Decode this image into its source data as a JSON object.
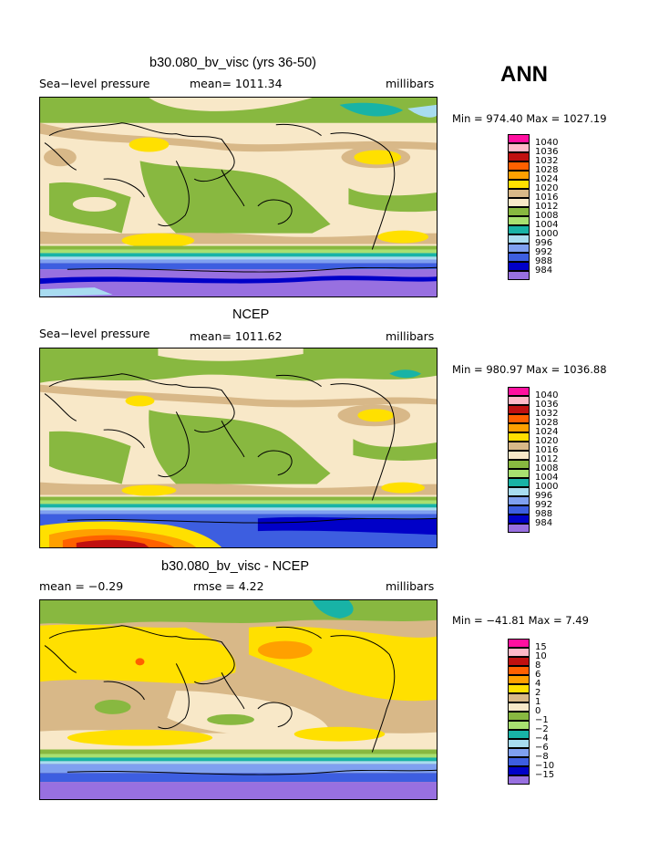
{
  "ann_label": "ANN",
  "colors": {
    "dblue": "#0000c8",
    "blue": "#3d5ee0",
    "lblue": "#7fa0f0",
    "paleblue": "#a8dcf0",
    "teal": "#18b3a6",
    "lgreen": "#a8e070",
    "green": "#88b840",
    "peach": "#f8e8c8",
    "tan": "#d8b888",
    "yellow": "#ffe000",
    "orange": "#ffa000",
    "dorange": "#ff6000",
    "red": "#c01010",
    "pink": "#ffb8c8",
    "magenta": "#ff10a0",
    "purple": "#9870e0"
  },
  "panels": [
    {
      "id": "top",
      "title": "b30.080_bv_visc (yrs 36-50)",
      "left_label": "Sea−level pressure",
      "mid_label": "mean=  1011.34",
      "right_label": "millibars",
      "minmax": "Min = 974.40 Max = 1027.19",
      "legend": [
        {
          "label": "1040",
          "color": "magenta"
        },
        {
          "label": "1036",
          "color": "pink"
        },
        {
          "label": "1032",
          "color": "red"
        },
        {
          "label": "1028",
          "color": "dorange"
        },
        {
          "label": "1024",
          "color": "orange"
        },
        {
          "label": "1020",
          "color": "yellow"
        },
        {
          "label": "1016",
          "color": "tan"
        },
        {
          "label": "1012",
          "color": "peach"
        },
        {
          "label": "1008",
          "color": "green"
        },
        {
          "label": "1004",
          "color": "lgreen"
        },
        {
          "label": "1000",
          "color": "teal"
        },
        {
          "label": "996",
          "color": "paleblue"
        },
        {
          "label": "992",
          "color": "lblue"
        },
        {
          "label": "988",
          "color": "blue"
        },
        {
          "label": "984",
          "color": "dblue"
        },
        {
          "label": "",
          "color": "purple"
        }
      ]
    },
    {
      "id": "mid",
      "title": "NCEP",
      "left_label": "Sea−level pressure",
      "mid_label": "mean=  1011.62",
      "right_label": "millibars",
      "minmax": "Min = 980.97 Max = 1036.88",
      "legend": [
        {
          "label": "1040",
          "color": "magenta"
        },
        {
          "label": "1036",
          "color": "pink"
        },
        {
          "label": "1032",
          "color": "red"
        },
        {
          "label": "1028",
          "color": "dorange"
        },
        {
          "label": "1024",
          "color": "orange"
        },
        {
          "label": "1020",
          "color": "yellow"
        },
        {
          "label": "1016",
          "color": "tan"
        },
        {
          "label": "1012",
          "color": "peach"
        },
        {
          "label": "1008",
          "color": "green"
        },
        {
          "label": "1004",
          "color": "lgreen"
        },
        {
          "label": "1000",
          "color": "teal"
        },
        {
          "label": "996",
          "color": "paleblue"
        },
        {
          "label": "992",
          "color": "lblue"
        },
        {
          "label": "988",
          "color": "blue"
        },
        {
          "label": "984",
          "color": "dblue"
        },
        {
          "label": "",
          "color": "purple"
        }
      ]
    },
    {
      "id": "bot",
      "title": "b30.080_bv_visc - NCEP",
      "left_label": "mean =   −0.29",
      "mid_label": "rmse =    4.22",
      "right_label": "millibars",
      "minmax": "Min = −41.81 Max =    7.49",
      "legend": [
        {
          "label": "15",
          "color": "magenta"
        },
        {
          "label": "10",
          "color": "pink"
        },
        {
          "label": "8",
          "color": "red"
        },
        {
          "label": "6",
          "color": "dorange"
        },
        {
          "label": "4",
          "color": "orange"
        },
        {
          "label": "2",
          "color": "yellow"
        },
        {
          "label": "1",
          "color": "tan"
        },
        {
          "label": "0",
          "color": "peach"
        },
        {
          "label": "−1",
          "color": "green"
        },
        {
          "label": "−2",
          "color": "lgreen"
        },
        {
          "label": "−4",
          "color": "teal"
        },
        {
          "label": "−6",
          "color": "paleblue"
        },
        {
          "label": "−8",
          "color": "lblue"
        },
        {
          "label": "−10",
          "color": "blue"
        },
        {
          "label": "−15",
          "color": "dblue"
        },
        {
          "label": "",
          "color": "purple"
        }
      ]
    }
  ]
}
